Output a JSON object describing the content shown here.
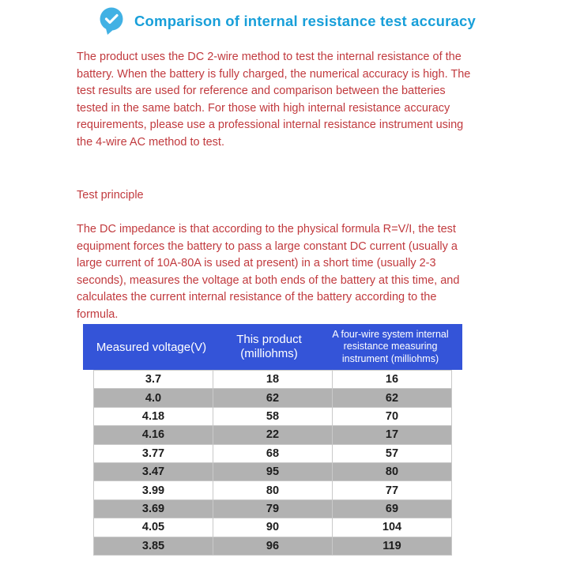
{
  "header": {
    "title": "Comparison of internal resistance test accuracy"
  },
  "body": {
    "intro": "The product uses the DC 2-wire method to test the internal resistance of the battery. When the battery is fully charged, the numerical accuracy is high. The test results are used for reference and comparison between the batteries tested in the same batch. For those with high internal resistance accuracy requirements, please use a professional internal resistance instrument using the 4-wire AC method to test.",
    "section_heading": "Test principle",
    "principle": "The DC impedance is that according to the physical formula R=V/I, the test equipment forces the battery to pass a large constant DC current (usually a large current of 10A-80A is used at present) in a short time (usually 2-3 seconds), measures the voltage at both ends of the battery at this time, and calculates the current internal resistance of the battery according to the formula."
  },
  "chart_data": {
    "type": "table",
    "columns": [
      "Measured voltage(V)",
      "This product (milliohms)",
      "A four-wire system internal resistance measuring instrument (milliohms)"
    ],
    "rows": [
      [
        "3.7",
        "18",
        "16"
      ],
      [
        "4.0",
        "62",
        "62"
      ],
      [
        "4.18",
        "58",
        "70"
      ],
      [
        "4.16",
        "22",
        "17"
      ],
      [
        "3.77",
        "68",
        "57"
      ],
      [
        "3.47",
        "95",
        "80"
      ],
      [
        "3.99",
        "80",
        "77"
      ],
      [
        "3.69",
        "79",
        "69"
      ],
      [
        "4.05",
        "90",
        "104"
      ],
      [
        "3.85",
        "96",
        "119"
      ]
    ]
  },
  "icons": {
    "bubble": "chat-check-icon"
  },
  "colors": {
    "title_blue": "#189fd9",
    "text_red": "#c13a3e",
    "table_header_blue": "#3454d8",
    "row_stripe_gray": "#b2b2b2",
    "icon_blue": "#41b1e4"
  }
}
